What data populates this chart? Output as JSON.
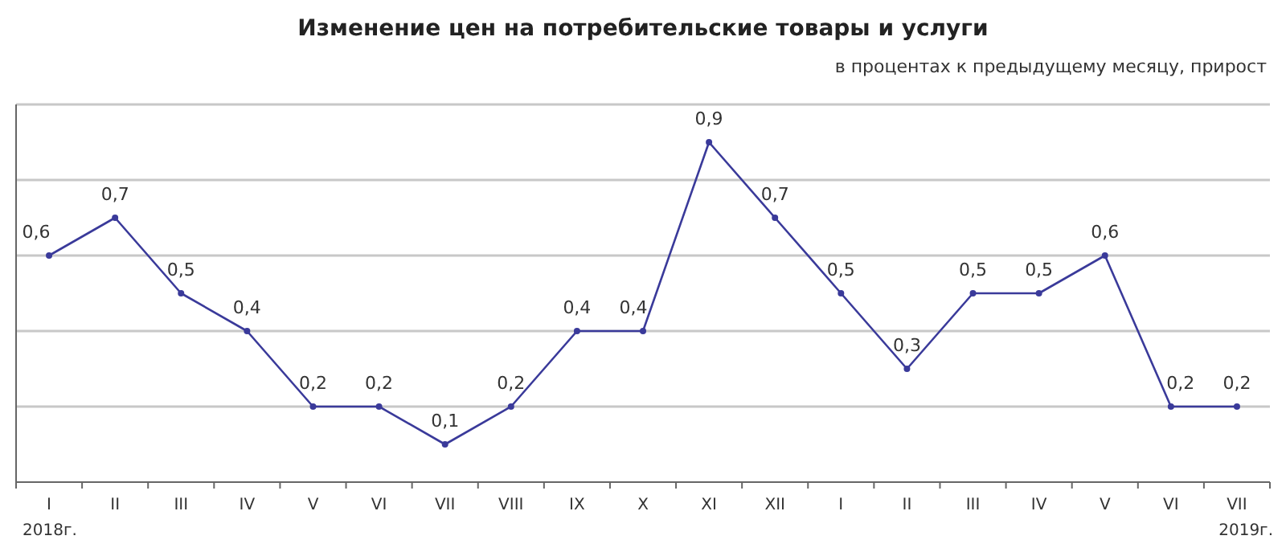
{
  "chart_data": {
    "type": "line",
    "title": "Изменение цен на потребительские товары и услуги",
    "subtitle": "в процентах к предыдущему месяцу, прирост",
    "categories": [
      "I",
      "II",
      "III",
      "IV",
      "V",
      "VI",
      "VII",
      "VIII",
      "IX",
      "X",
      "XI",
      "XII",
      "I",
      "II",
      "III",
      "IV",
      "V",
      "VI",
      "VII"
    ],
    "series": [
      {
        "color": "#3a3a9a",
        "values": [
          0.6,
          0.7,
          0.5,
          0.4,
          0.2,
          0.2,
          0.1,
          0.2,
          0.4,
          0.4,
          0.9,
          0.7,
          0.5,
          0.3,
          0.5,
          0.5,
          0.6,
          0.2,
          0.2
        ],
        "value_labels": [
          "0,6",
          "0,7",
          "0,5",
          "0,4",
          "0,2",
          "0,2",
          "0,1",
          "0,2",
          "0,4",
          "0,4",
          "0,9",
          "0,7",
          "0,5",
          "0,3",
          "0,5",
          "0,5",
          "0,6",
          "0,2",
          "0,2"
        ]
      }
    ],
    "ylim": [
      0,
      1
    ],
    "yticks": [
      {
        "value": 0.2,
        "label": null
      },
      {
        "value": 0.4,
        "label": null
      },
      {
        "value": 0.6,
        "label": null
      },
      {
        "value": 0.8,
        "label": null
      },
      {
        "value": 1,
        "label": null
      }
    ],
    "tick_labels": "x",
    "grid": "y",
    "marker": "circle",
    "line_style": "solid",
    "annotations": [
      "2018г.",
      "2019г."
    ]
  }
}
